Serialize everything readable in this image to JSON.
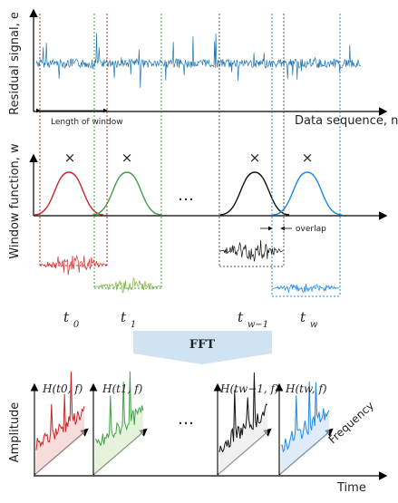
{
  "top_panel": {
    "y_label": "Residual signal, e",
    "x_label": "Data sequence, n",
    "window_length_label": "Length of window"
  },
  "window_panel": {
    "y_label": "Window function, w",
    "multiply_symbol": "×",
    "ellipsis": "…",
    "overlap_label": "overlap"
  },
  "time_labels": {
    "t0": "t0",
    "t1": "t1",
    "tw_minus_1": "tw−1",
    "tw": "tw"
  },
  "fft_label": "FFT",
  "spectra_panel": {
    "y_label": "Amplitude",
    "x_label": "Time",
    "depth_label": "Frequency",
    "ellipsis": "…",
    "titles": [
      "H(t0, f)",
      "H(t1, f)",
      "H(tw−1, f)",
      "H(tw, f)"
    ]
  },
  "colors": {
    "signal": "#1f77b4",
    "window0": "#c62828",
    "window1": "#43a047",
    "window2": "#111111",
    "window3": "#1e88e5",
    "arrow_fill": "#cfe3f2"
  }
}
